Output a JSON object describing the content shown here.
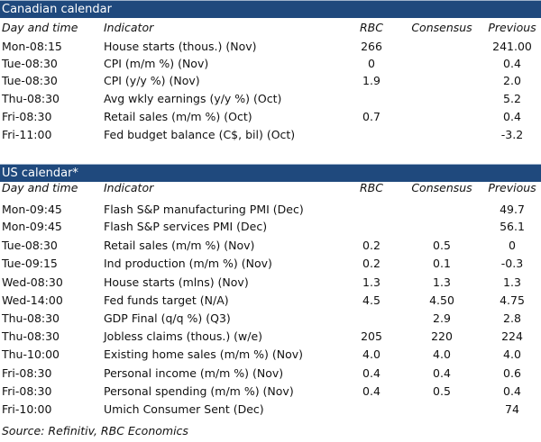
{
  "columns": [
    "Day and time",
    "Indicator",
    "RBC",
    "Consensus",
    "Previous"
  ],
  "canadian": {
    "title": "Canadian calendar",
    "rows": [
      [
        "Mon-08:15",
        "House starts (thous.) (Nov)",
        "266",
        "",
        "241.00"
      ],
      [
        "Tue-08:30",
        "CPI (m/m %) (Nov)",
        "0",
        "",
        "0.4"
      ],
      [
        "Tue-08:30",
        "CPI (y/y %) (Nov)",
        "1.9",
        "",
        "2.0"
      ],
      [
        "Thu-08:30",
        "Avg wkly earnings (y/y %) (Oct)",
        "",
        "",
        "5.2"
      ],
      [
        "Fri-08:30",
        "Retail sales (m/m %) (Oct)",
        "0.7",
        "",
        "0.4"
      ],
      [
        "Fri-11:00",
        "Fed budget balance (C$, bil) (Oct)",
        "",
        "",
        "-3.2"
      ]
    ]
  },
  "us": {
    "title": "US calendar*",
    "rows": [
      [
        "Mon-09:45",
        "Flash S&P manufacturing PMI (Dec)",
        "",
        "",
        "49.7"
      ],
      [
        "Mon-09:45",
        "Flash S&P services PMI (Dec)",
        "",
        "",
        "56.1"
      ],
      [
        "Tue-08:30",
        "Retail sales (m/m %) (Nov)",
        "0.2",
        "0.5",
        "0"
      ],
      [
        "Tue-09:15",
        "Ind production (m/m %) (Nov)",
        "0.2",
        "0.1",
        "-0.3"
      ],
      [
        "Wed-08:30",
        "House starts (mlns) (Nov)",
        "1.3",
        "1.3",
        "1.3"
      ],
      [
        "Wed-14:00",
        "Fed funds target (N/A)",
        "4.5",
        "4.50",
        "4.75"
      ],
      [
        "Thu-08:30",
        "GDP Final (q/q %) (Q3)",
        "",
        "2.9",
        "2.8"
      ],
      [
        "Thu-08:30",
        "Jobless claims (thous.) (w/e)",
        "205",
        "220",
        "224"
      ],
      [
        "Thu-10:00",
        "Existing home sales (m/m %) (Nov)",
        "4.0",
        "4.0",
        "4.0"
      ],
      [
        "Fri-08:30",
        "Personal income (m/m %) (Nov)",
        "0.4",
        "0.4",
        "0.6"
      ],
      [
        "Fri-08:30",
        "Personal spending (m/m %) (Nov)",
        "0.4",
        "0.5",
        "0.4"
      ],
      [
        "Fri-10:00",
        "Umich Consumer Sent (Dec)",
        "",
        "",
        "74"
      ]
    ]
  },
  "source": "Source: Refinitiv,  RBC Economics",
  "colors": {
    "header_bar": "#1f497d"
  }
}
